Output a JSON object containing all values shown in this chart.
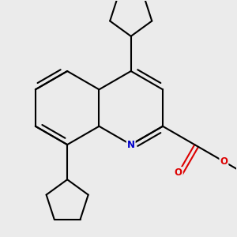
{
  "background_color": "#ebebeb",
  "bond_color": "#000000",
  "nitrogen_color": "#0000cc",
  "oxygen_color": "#dd0000",
  "line_width": 1.5,
  "figsize": [
    3.0,
    3.0
  ],
  "dpi": 100,
  "xlim": [
    -2.1,
    2.5
  ],
  "ylim": [
    -2.4,
    2.2
  ]
}
